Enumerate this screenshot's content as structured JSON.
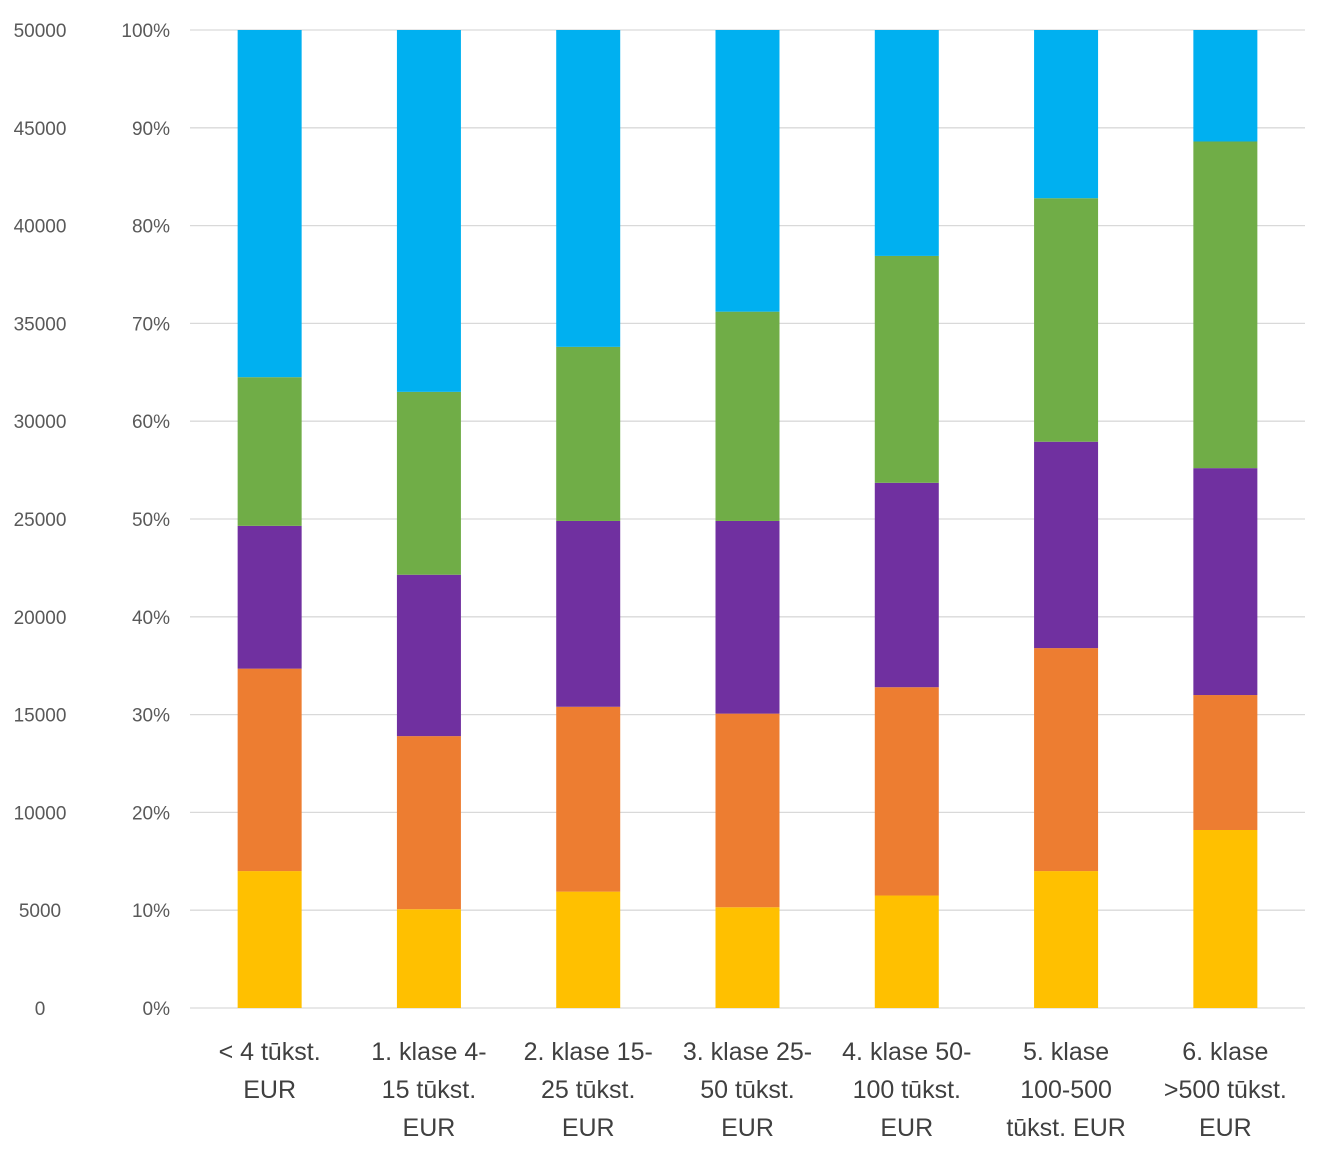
{
  "chart_data": {
    "type": "bar",
    "stacked": "percent",
    "categories": [
      [
        "< 4 tūkst.",
        "EUR"
      ],
      [
        "1. klase 4-",
        "15 tūkst.",
        "EUR"
      ],
      [
        "2. klase 15-",
        "25 tūkst.",
        "EUR"
      ],
      [
        "3. klase 25-",
        "50 tūkst.",
        "EUR"
      ],
      [
        "4. klase 50-",
        "100 tūkst.",
        "EUR"
      ],
      [
        "5. klase",
        "100-500",
        "tūkst.  EUR"
      ],
      [
        "6. klase",
        ">500 tūkst.",
        "EUR"
      ]
    ],
    "series": [
      {
        "color": "#FFC000",
        "values": [
          14.0,
          10.1,
          11.9,
          10.3,
          11.5,
          14.0,
          18.2
        ]
      },
      {
        "color": "#ED7D31",
        "values": [
          20.7,
          17.7,
          18.9,
          19.8,
          21.3,
          22.8,
          13.8
        ]
      },
      {
        "color": "#7030A0",
        "values": [
          14.6,
          16.5,
          19.0,
          19.7,
          20.9,
          21.1,
          23.2
        ]
      },
      {
        "color": "#70AD47",
        "values": [
          15.2,
          18.7,
          17.8,
          21.4,
          23.2,
          24.9,
          33.4
        ]
      },
      {
        "color": "#00B0F0",
        "values": [
          35.5,
          37.0,
          32.4,
          28.8,
          23.1,
          17.2,
          11.4
        ]
      }
    ],
    "y_percent_axis": {
      "range": [
        0,
        100
      ],
      "ticks": [
        "0%",
        "10%",
        "20%",
        "30%",
        "40%",
        "50%",
        "60%",
        "70%",
        "80%",
        "90%",
        "100%"
      ]
    },
    "y_secondary_axis": {
      "range": [
        0,
        50000
      ],
      "ticks": [
        "0",
        "5000",
        "10000",
        "15000",
        "20000",
        "25000",
        "30000",
        "35000",
        "40000",
        "45000",
        "50000"
      ]
    },
    "grid": true,
    "legend": "none"
  }
}
